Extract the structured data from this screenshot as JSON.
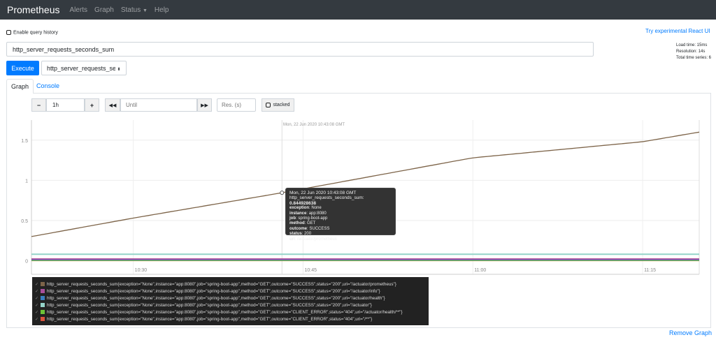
{
  "navbar": {
    "brand": "Prometheus",
    "items": [
      "Alerts",
      "Graph",
      "Status",
      "Help"
    ]
  },
  "query_history_label": "Enable query history",
  "react_link": "Try experimental React UI",
  "expression": "http_server_requests_seconds_sum",
  "stats": {
    "load_time": "Load time: 15ms",
    "resolution": "Resolution: 14s",
    "total_series": "Total time series: 6"
  },
  "execute_label": "Execute",
  "metric_select": "http_server_requests_sec",
  "tabs": [
    "Graph",
    "Console"
  ],
  "controls": {
    "range": "1h",
    "until_placeholder": "Until",
    "res_placeholder": "Res. (s)",
    "stacked": "stacked"
  },
  "hover_time_label": "Mon, 22 Jun 2020 10:43:08 GMT",
  "tooltip": {
    "time": "Mon, 22 Jun 2020 10:43:08 GMT",
    "metric": "http_server_requests_seconds_sum:",
    "value": "0.844928638",
    "labels": [
      [
        "exception",
        "None"
      ],
      [
        "instance",
        "app:8080"
      ],
      [
        "job",
        "spring-boot-app"
      ],
      [
        "method",
        "GET"
      ],
      [
        "outcome",
        "SUCCESS"
      ],
      [
        "status",
        "200"
      ],
      [
        "uri",
        "/actuator/prometheus"
      ]
    ]
  },
  "remove_graph": "Remove Graph",
  "chart_data": {
    "type": "line",
    "xlim": [
      "10:21",
      "11:20"
    ],
    "ylim": [
      -0.17,
      1.75
    ],
    "yticks": [
      0,
      0.5,
      1,
      1.5
    ],
    "ytick_labels": [
      "0",
      "0.5",
      "1",
      "1.5"
    ],
    "xticks": [
      "10:30",
      "10:45",
      "11:00",
      "11:15"
    ],
    "grid": true,
    "legend_placement": "bottom",
    "series": [
      {
        "name": "http_server_requests_seconds_sum{exception=\"None\",instance=\"app:8080\",job=\"spring-boot-app\",method=\"GET\",outcome=\"SUCCESS\",status=\"200\",uri=\"/actuator/prometheus\"}",
        "color": "#7d6449",
        "x": [
          "10:21",
          "10:30",
          "10:43:08",
          "11:00",
          "11:15",
          "11:20"
        ],
        "y": [
          0.3,
          0.53,
          0.845,
          1.28,
          1.48,
          1.6
        ]
      },
      {
        "name": "http_server_requests_seconds_sum{exception=\"None\",instance=\"app:8080\",job=\"spring-boot-app\",method=\"GET\",outcome=\"SUCCESS\",status=\"200\",uri=\"/actuator/info\"}",
        "color": "#a94f9b",
        "x": [
          "10:21",
          "11:20"
        ],
        "y": [
          0.02,
          0.02
        ]
      },
      {
        "name": "http_server_requests_seconds_sum{exception=\"None\",instance=\"app:8080\",job=\"spring-boot-app\",method=\"GET\",outcome=\"SUCCESS\",status=\"200\",uri=\"/actuator/health\"}",
        "color": "#3a7ebf",
        "x": [
          "10:21",
          "11:20"
        ],
        "y": [
          0.012,
          0.012
        ]
      },
      {
        "name": "http_server_requests_seconds_sum{exception=\"None\",instance=\"app:8080\",job=\"spring-boot-app\",method=\"GET\",outcome=\"SUCCESS\",status=\"200\",uri=\"/actuator\"}",
        "color": "#94d4c9",
        "x": [
          "10:21",
          "11:20"
        ],
        "y": [
          0.08,
          0.08
        ]
      },
      {
        "name": "http_server_requests_seconds_sum{exception=\"None\",instance=\"app:8080\",job=\"spring-boot-app\",method=\"GET\",outcome=\"CLIENT_ERROR\",status=\"404\",uri=\"/actuator/health/**\"}",
        "color": "#6cc236",
        "x": [
          "10:21",
          "11:20"
        ],
        "y": [
          0.005,
          0.005
        ]
      },
      {
        "name": "http_server_requests_seconds_sum{exception=\"None\",instance=\"app:8080\",job=\"spring-boot-app\",method=\"GET\",outcome=\"CLIENT_ERROR\",status=\"404\",uri=\"/**\"}",
        "color": "#d9523c",
        "x": [
          "10:21",
          "11:20"
        ],
        "y": [
          0.003,
          0.003
        ]
      }
    ]
  }
}
